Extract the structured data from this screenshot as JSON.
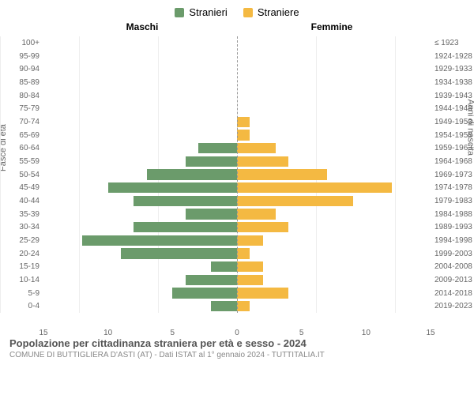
{
  "chart": {
    "type": "population-pyramid",
    "legend": [
      {
        "label": "Stranieri",
        "color": "#6b9b6b"
      },
      {
        "label": "Straniere",
        "color": "#f4b942"
      }
    ],
    "header_left": "Maschi",
    "header_right": "Femmine",
    "y_label_left": "Fasce di età",
    "y_label_right": "Anni di nascita",
    "x_max": 15,
    "x_ticks": [
      15,
      10,
      5,
      0,
      5,
      10,
      15
    ],
    "colors": {
      "male": "#6b9b6b",
      "female": "#f4b942",
      "grid": "#eeeeee",
      "axis_dash": "#999999",
      "text": "#666666",
      "bg": "#ffffff"
    },
    "fontsize": {
      "legend": 13,
      "header": 12,
      "labels": 10,
      "y_title": 11
    },
    "rows": [
      {
        "age": "100+",
        "birth": "≤ 1923",
        "m": 0,
        "f": 0
      },
      {
        "age": "95-99",
        "birth": "1924-1928",
        "m": 0,
        "f": 0
      },
      {
        "age": "90-94",
        "birth": "1929-1933",
        "m": 0,
        "f": 0
      },
      {
        "age": "85-89",
        "birth": "1934-1938",
        "m": 0,
        "f": 0
      },
      {
        "age": "80-84",
        "birth": "1939-1943",
        "m": 0,
        "f": 0
      },
      {
        "age": "75-79",
        "birth": "1944-1948",
        "m": 0,
        "f": 0
      },
      {
        "age": "70-74",
        "birth": "1949-1953",
        "m": 0,
        "f": 1
      },
      {
        "age": "65-69",
        "birth": "1954-1958",
        "m": 0,
        "f": 1
      },
      {
        "age": "60-64",
        "birth": "1959-1963",
        "m": 3,
        "f": 3
      },
      {
        "age": "55-59",
        "birth": "1964-1968",
        "m": 4,
        "f": 4
      },
      {
        "age": "50-54",
        "birth": "1969-1973",
        "m": 7,
        "f": 7
      },
      {
        "age": "45-49",
        "birth": "1974-1978",
        "m": 10,
        "f": 12
      },
      {
        "age": "40-44",
        "birth": "1979-1983",
        "m": 8,
        "f": 9
      },
      {
        "age": "35-39",
        "birth": "1984-1988",
        "m": 4,
        "f": 3
      },
      {
        "age": "30-34",
        "birth": "1989-1993",
        "m": 8,
        "f": 4
      },
      {
        "age": "25-29",
        "birth": "1994-1998",
        "m": 12,
        "f": 2
      },
      {
        "age": "20-24",
        "birth": "1999-2003",
        "m": 9,
        "f": 1
      },
      {
        "age": "15-19",
        "birth": "2004-2008",
        "m": 2,
        "f": 2
      },
      {
        "age": "10-14",
        "birth": "2009-2013",
        "m": 4,
        "f": 2
      },
      {
        "age": "5-9",
        "birth": "2014-2018",
        "m": 5,
        "f": 4
      },
      {
        "age": "0-4",
        "birth": "2019-2023",
        "m": 2,
        "f": 1
      }
    ]
  },
  "footer": {
    "title": "Popolazione per cittadinanza straniera per età e sesso - 2024",
    "subtitle": "COMUNE DI BUTTIGLIERA D'ASTI (AT) - Dati ISTAT al 1° gennaio 2024 - TUTTITALIA.IT"
  }
}
